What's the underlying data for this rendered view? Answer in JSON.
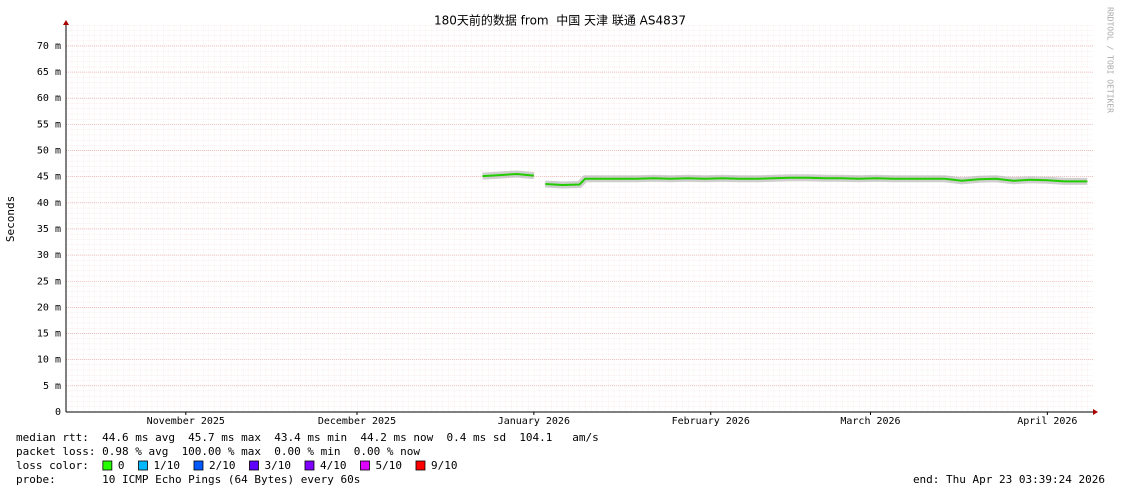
{
  "chart_data": {
    "type": "line",
    "title": "180天前的数据 from  中国 天津 联通 AS4837",
    "y_label": "Seconds",
    "side_label": "RRDTOOL / TOBI OETIKER",
    "xlim": [
      0,
      180
    ],
    "xticks": [
      {
        "value": 21,
        "label": "November 2025"
      },
      {
        "value": 51,
        "label": "December 2025"
      },
      {
        "value": 82,
        "label": "January 2026"
      },
      {
        "value": 113,
        "label": "February 2026"
      },
      {
        "value": 141,
        "label": "March 2026"
      },
      {
        "value": 172,
        "label": "April 2026"
      }
    ],
    "ylim": [
      0,
      0.074
    ],
    "yticks": [
      0,
      {
        "value": 0.005,
        "label": "5 m"
      },
      {
        "value": 0.01,
        "label": "10 m"
      },
      {
        "value": 0.015,
        "label": "15 m"
      },
      {
        "value": 0.02,
        "label": "20 m"
      },
      {
        "value": 0.025,
        "label": "25 m"
      },
      {
        "value": 0.03,
        "label": "30 m"
      },
      {
        "value": 0.035,
        "label": "35 m"
      },
      {
        "value": 0.04,
        "label": "40 m"
      },
      {
        "value": 0.045,
        "label": "45 m"
      },
      {
        "value": 0.05,
        "label": "50 m"
      },
      {
        "value": 0.055,
        "label": "55 m"
      },
      {
        "value": 0.06,
        "label": "60 m"
      },
      {
        "value": 0.065,
        "label": "65 m"
      },
      {
        "value": 0.07,
        "label": "70 m"
      }
    ],
    "grid": true,
    "x": [
      73,
      76,
      79,
      82,
      83,
      84,
      87,
      90,
      91,
      94,
      97,
      100,
      103,
      106,
      109,
      112,
      115,
      118,
      121,
      124,
      127,
      130,
      133,
      136,
      139,
      142,
      145,
      148,
      151,
      154,
      157,
      160,
      163,
      166,
      169,
      172,
      175,
      179
    ],
    "series": [
      {
        "color": "#22cc00",
        "values": [
          0.0451,
          0.0453,
          0.0455,
          0.0452,
          null,
          0.0436,
          0.0434,
          0.0435,
          0.0446,
          0.0446,
          0.0446,
          0.0446,
          0.0447,
          0.0446,
          0.0447,
          0.0446,
          0.0447,
          0.0446,
          0.0446,
          0.0447,
          0.0448,
          0.0448,
          0.0447,
          0.0447,
          0.0446,
          0.0447,
          0.0446,
          0.0446,
          0.0446,
          0.0446,
          0.0442,
          0.0445,
          0.0446,
          0.0442,
          0.0444,
          0.0443,
          0.0441,
          0.0441
        ]
      }
    ],
    "stats": [
      "median rtt:  44.6 ms avg  45.7 ms max  43.4 ms min  44.2 ms now  0.4 ms sd  104.1   am/s",
      "packet loss: 0.98 % avg  100.00 % max  0.00 % min  0.00 % now"
    ],
    "loss_title": "loss color:",
    "loss_colors": [
      {
        "label": "0",
        "color": "#26ff00"
      },
      {
        "label": "1/10",
        "color": "#00b8ff"
      },
      {
        "label": "2/10",
        "color": "#0059ff"
      },
      {
        "label": "3/10",
        "color": "#5e00ff"
      },
      {
        "label": "4/10",
        "color": "#7e00ff"
      },
      {
        "label": "5/10",
        "color": "#dd00ff"
      },
      {
        "label": "9/10",
        "color": "#ff0000"
      }
    ],
    "probe": "probe:       10 ICMP Echo Pings (64 Bytes) every 60s",
    "end": "end: Thu Apr 23 03:39:24 2026"
  }
}
